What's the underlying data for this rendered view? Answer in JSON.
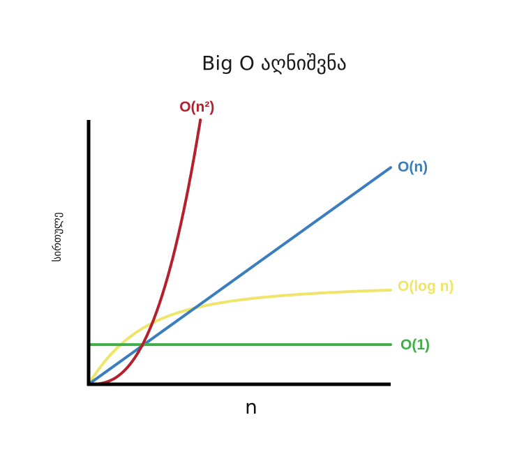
{
  "chart_data": {
    "type": "line",
    "title": "Big O აღნიშვნა",
    "xlabel": "n",
    "ylabel": "სირთულე",
    "xlim": [
      0,
      10
    ],
    "ylim": [
      0,
      10
    ],
    "grid": false,
    "series": [
      {
        "name": "O(n²)",
        "label": "O(n²)",
        "color": "#b5202d",
        "function": "quadratic",
        "x": [
          0,
          0.5,
          1,
          1.5,
          2,
          2.5,
          3,
          3.3,
          3.7
        ],
        "y": [
          0,
          0.18,
          0.73,
          1.64,
          2.92,
          4.56,
          6.57,
          7.95,
          10.0
        ]
      },
      {
        "name": "O(n)",
        "label": "O(n)",
        "color": "#3a7ebf",
        "function": "linear",
        "x": [
          0,
          2,
          4,
          6,
          8,
          10
        ],
        "y": [
          0,
          1.64,
          3.28,
          4.92,
          6.56,
          8.2
        ]
      },
      {
        "name": "O(log n)",
        "label": "O(log n)",
        "color": "#efe56a",
        "function": "logarithmic",
        "x": [
          0,
          0.5,
          1,
          2,
          4,
          6,
          8,
          10
        ],
        "y": [
          0,
          1.35,
          1.85,
          2.55,
          3.2,
          3.5,
          3.65,
          3.7
        ]
      },
      {
        "name": "O(1)",
        "label": "O(1)",
        "color": "#3fae49",
        "function": "constant",
        "x": [
          0,
          10
        ],
        "y": [
          1.5,
          1.5
        ]
      }
    ],
    "axis_color": "#000000"
  }
}
